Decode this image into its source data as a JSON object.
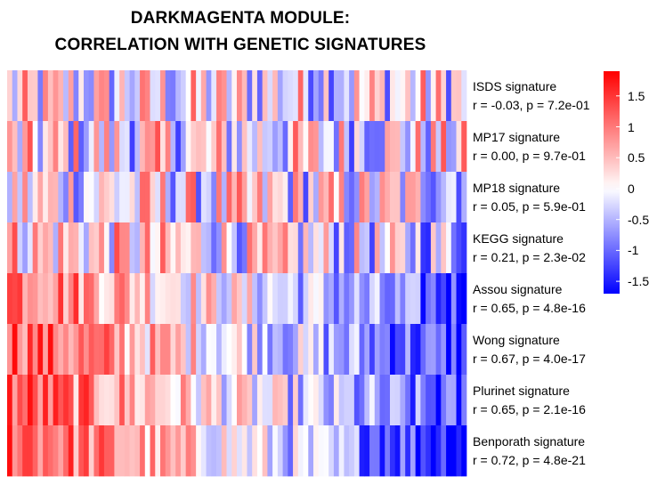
{
  "title": {
    "line1": "DARKMAGENTA MODULE:",
    "line2": "CORRELATION WITH GENETIC SIGNATURES"
  },
  "chart_data": {
    "type": "heatmap",
    "n_columns": 90,
    "color_scale": {
      "low_color": "#0000ff",
      "mid_color": "#ffffff",
      "high_color": "#ff0000",
      "range": [
        -1.7,
        1.9
      ],
      "ticks": [
        "1.5",
        "1",
        "0.5",
        "0",
        "-0.5",
        "-1",
        "-1.5"
      ],
      "tick_values": [
        1.5,
        1,
        0.5,
        0,
        -0.5,
        -1,
        -1.5
      ]
    },
    "rows": [
      {
        "name": "ISDS signature",
        "stats": "r = -0.03, p = 7.2e-01",
        "r": -0.03,
        "p": "7.2e-01"
      },
      {
        "name": "MP17 signature",
        "stats": "r = 0.00, p = 9.7e-01",
        "r": 0.0,
        "p": "9.7e-01"
      },
      {
        "name": "MP18 signature",
        "stats": "r = 0.05, p = 5.9e-01",
        "r": 0.05,
        "p": "5.9e-01"
      },
      {
        "name": "KEGG signature",
        "stats": "r = 0.21, p = 2.3e-02",
        "r": 0.21,
        "p": "2.3e-02"
      },
      {
        "name": "Assou signature",
        "stats": "r = 0.65, p = 4.8e-16",
        "r": 0.65,
        "p": "4.8e-16"
      },
      {
        "name": "Wong signature",
        "stats": "r = 0.67, p = 4.0e-17",
        "r": 0.67,
        "p": "4.0e-17"
      },
      {
        "name": "Plurinet signature",
        "stats": "r = 0.65, p = 2.1e-16",
        "r": 0.65,
        "p": "2.1e-16"
      },
      {
        "name": "Benporath signature",
        "stats": "r = 0.72, p = 4.8e-21",
        "r": 0.72,
        "p": "4.8e-21"
      }
    ]
  }
}
